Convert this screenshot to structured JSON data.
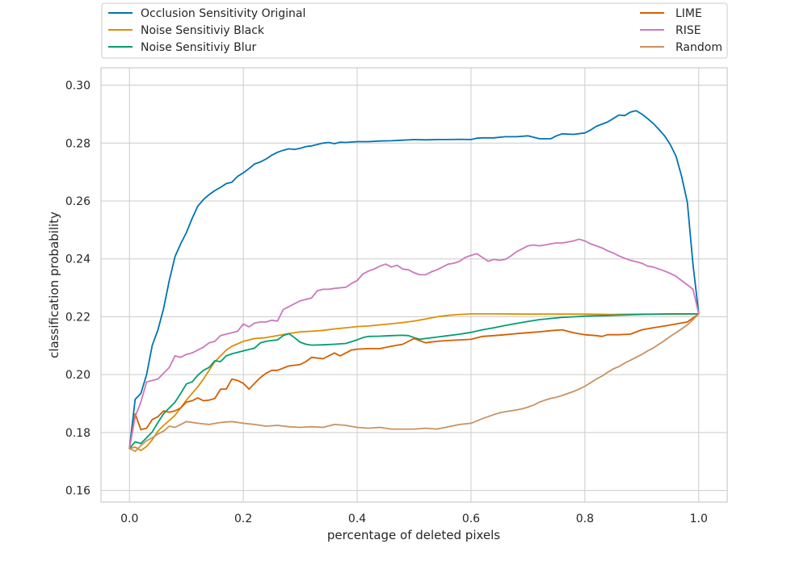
{
  "chart_data": {
    "type": "line",
    "xlabel": "percentage of deleted pixels",
    "ylabel": "classification probability",
    "xlim": [
      -0.05,
      1.05
    ],
    "ylim": [
      0.156,
      0.306
    ],
    "xticks": [
      "0.0",
      "0.2",
      "0.4",
      "0.6",
      "0.8",
      "1.0"
    ],
    "xtick_values": [
      0.0,
      0.2,
      0.4,
      0.6,
      0.8,
      1.0
    ],
    "yticks": [
      "0.16",
      "0.18",
      "0.20",
      "0.22",
      "0.24",
      "0.26",
      "0.28",
      "0.30"
    ],
    "ytick_values": [
      0.16,
      0.18,
      0.2,
      0.22,
      0.24,
      0.26,
      0.28,
      0.3
    ],
    "grid": true,
    "legend_position": "top, above plot",
    "series": [
      {
        "name": "Occlusion Sensitivity Original",
        "color": "#0173b2",
        "x": [
          0.0,
          0.01,
          0.02,
          0.03,
          0.04,
          0.05,
          0.06,
          0.07,
          0.08,
          0.09,
          0.1,
          0.11,
          0.12,
          0.13,
          0.14,
          0.15,
          0.16,
          0.17,
          0.18,
          0.19,
          0.2,
          0.21,
          0.22,
          0.23,
          0.24,
          0.25,
          0.26,
          0.27,
          0.28,
          0.29,
          0.3,
          0.31,
          0.32,
          0.33,
          0.34,
          0.35,
          0.36,
          0.37,
          0.38,
          0.4,
          0.42,
          0.44,
          0.46,
          0.48,
          0.5,
          0.52,
          0.54,
          0.56,
          0.58,
          0.6,
          0.61,
          0.62,
          0.64,
          0.66,
          0.68,
          0.7,
          0.72,
          0.74,
          0.75,
          0.76,
          0.78,
          0.8,
          0.81,
          0.82,
          0.84,
          0.85,
          0.86,
          0.87,
          0.88,
          0.89,
          0.9,
          0.91,
          0.92,
          0.93,
          0.94,
          0.95,
          0.96,
          0.97,
          0.98,
          0.99,
          1.0
        ],
        "y": [
          0.1745,
          0.1915,
          0.1935,
          0.2,
          0.2101,
          0.2155,
          0.2229,
          0.2325,
          0.2408,
          0.2452,
          0.2491,
          0.2539,
          0.2582,
          0.2605,
          0.2622,
          0.2636,
          0.2647,
          0.266,
          0.2665,
          0.2685,
          0.2697,
          0.2712,
          0.2728,
          0.2735,
          0.2745,
          0.2758,
          0.2768,
          0.2775,
          0.278,
          0.2778,
          0.2782,
          0.2788,
          0.279,
          0.2795,
          0.28,
          0.2802,
          0.2798,
          0.2803,
          0.2802,
          0.2805,
          0.2805,
          0.2807,
          0.2808,
          0.281,
          0.2812,
          0.2811,
          0.2812,
          0.2812,
          0.2813,
          0.2812,
          0.2817,
          0.2818,
          0.2818,
          0.2822,
          0.2822,
          0.2825,
          0.2815,
          0.2815,
          0.2825,
          0.2832,
          0.283,
          0.2835,
          0.2845,
          0.2858,
          0.2873,
          0.2885,
          0.2897,
          0.2895,
          0.2907,
          0.2912,
          0.29,
          0.2885,
          0.2868,
          0.2847,
          0.2825,
          0.2795,
          0.2755,
          0.2685,
          0.2595,
          0.238,
          0.221
        ]
      },
      {
        "name": "Noise Sensitiviy Black",
        "color": "#de8f05",
        "x": [
          0.0,
          0.01,
          0.02,
          0.03,
          0.04,
          0.05,
          0.06,
          0.07,
          0.08,
          0.09,
          0.1,
          0.11,
          0.12,
          0.13,
          0.14,
          0.15,
          0.16,
          0.17,
          0.18,
          0.2,
          0.22,
          0.24,
          0.26,
          0.28,
          0.3,
          0.32,
          0.34,
          0.36,
          0.38,
          0.4,
          0.42,
          0.44,
          0.46,
          0.48,
          0.5,
          0.52,
          0.54,
          0.56,
          0.58,
          0.6,
          0.65,
          0.7,
          0.75,
          0.8,
          0.85,
          0.9,
          0.95,
          1.0
        ],
        "y": [
          0.1745,
          0.175,
          0.1738,
          0.1752,
          0.1775,
          0.1805,
          0.1825,
          0.1842,
          0.186,
          0.1885,
          0.1912,
          0.1935,
          0.1958,
          0.1985,
          0.2015,
          0.2045,
          0.2065,
          0.2085,
          0.2098,
          0.2115,
          0.2125,
          0.2128,
          0.2135,
          0.2142,
          0.2148,
          0.215,
          0.2153,
          0.2158,
          0.2162,
          0.2166,
          0.2168,
          0.2172,
          0.2176,
          0.218,
          0.2185,
          0.2192,
          0.22,
          0.2205,
          0.2208,
          0.221,
          0.221,
          0.2209,
          0.2209,
          0.2209,
          0.2208,
          0.2209,
          0.2209,
          0.221
        ]
      },
      {
        "name": "Noise Sensitiviy Blur",
        "color": "#029e73",
        "x": [
          0.0,
          0.01,
          0.02,
          0.03,
          0.04,
          0.05,
          0.06,
          0.07,
          0.08,
          0.09,
          0.1,
          0.11,
          0.12,
          0.13,
          0.14,
          0.15,
          0.16,
          0.17,
          0.18,
          0.2,
          0.22,
          0.23,
          0.24,
          0.25,
          0.26,
          0.27,
          0.28,
          0.29,
          0.3,
          0.31,
          0.32,
          0.34,
          0.36,
          0.38,
          0.4,
          0.41,
          0.42,
          0.44,
          0.46,
          0.48,
          0.49,
          0.5,
          0.51,
          0.52,
          0.54,
          0.56,
          0.58,
          0.6,
          0.62,
          0.64,
          0.66,
          0.68,
          0.7,
          0.72,
          0.74,
          0.76,
          0.78,
          0.8,
          0.85,
          0.9,
          0.95,
          1.0
        ],
        "y": [
          0.1745,
          0.1768,
          0.1762,
          0.1782,
          0.1802,
          0.1835,
          0.1865,
          0.1885,
          0.1905,
          0.1935,
          0.1968,
          0.1975,
          0.1998,
          0.2015,
          0.2025,
          0.2048,
          0.2045,
          0.2065,
          0.2072,
          0.2082,
          0.2092,
          0.211,
          0.2115,
          0.2118,
          0.212,
          0.2135,
          0.2142,
          0.2128,
          0.2112,
          0.2105,
          0.2102,
          0.2103,
          0.2105,
          0.2108,
          0.212,
          0.2128,
          0.2132,
          0.2133,
          0.2135,
          0.2136,
          0.2135,
          0.2128,
          0.2122,
          0.2125,
          0.213,
          0.2135,
          0.214,
          0.2146,
          0.2155,
          0.2162,
          0.217,
          0.2177,
          0.2184,
          0.219,
          0.2194,
          0.2198,
          0.22,
          0.2202,
          0.2205,
          0.2208,
          0.221,
          0.221
        ]
      },
      {
        "name": "LIME",
        "color": "#d55e00",
        "x": [
          0.0,
          0.01,
          0.02,
          0.03,
          0.04,
          0.05,
          0.06,
          0.07,
          0.08,
          0.09,
          0.1,
          0.11,
          0.12,
          0.13,
          0.14,
          0.15,
          0.16,
          0.17,
          0.18,
          0.19,
          0.2,
          0.21,
          0.22,
          0.23,
          0.24,
          0.25,
          0.26,
          0.28,
          0.3,
          0.31,
          0.32,
          0.34,
          0.36,
          0.37,
          0.38,
          0.39,
          0.4,
          0.42,
          0.44,
          0.46,
          0.48,
          0.5,
          0.52,
          0.54,
          0.56,
          0.58,
          0.6,
          0.62,
          0.64,
          0.66,
          0.68,
          0.7,
          0.72,
          0.74,
          0.76,
          0.78,
          0.8,
          0.82,
          0.83,
          0.84,
          0.86,
          0.88,
          0.9,
          0.92,
          0.94,
          0.96,
          0.98,
          1.0
        ],
        "y": [
          0.1745,
          0.1865,
          0.181,
          0.1815,
          0.1845,
          0.1855,
          0.1875,
          0.187,
          0.1875,
          0.1885,
          0.1905,
          0.191,
          0.192,
          0.191,
          0.1912,
          0.1918,
          0.195,
          0.195,
          0.1985,
          0.198,
          0.197,
          0.195,
          0.197,
          0.199,
          0.2005,
          0.2015,
          0.2015,
          0.203,
          0.2035,
          0.2045,
          0.206,
          0.2055,
          0.2075,
          0.2065,
          0.2075,
          0.2085,
          0.2088,
          0.209,
          0.209,
          0.2098,
          0.2105,
          0.2125,
          0.211,
          0.2115,
          0.2118,
          0.212,
          0.2122,
          0.2132,
          0.2135,
          0.2138,
          0.2142,
          0.2145,
          0.2148,
          0.2152,
          0.2155,
          0.2145,
          0.2138,
          0.2135,
          0.2132,
          0.2138,
          0.2138,
          0.214,
          0.2155,
          0.2162,
          0.2168,
          0.2175,
          0.2182,
          0.221
        ]
      },
      {
        "name": "RISE",
        "color": "#cc78bc",
        "x": [
          0.0,
          0.01,
          0.02,
          0.03,
          0.04,
          0.05,
          0.06,
          0.07,
          0.08,
          0.09,
          0.1,
          0.11,
          0.12,
          0.13,
          0.14,
          0.15,
          0.16,
          0.17,
          0.18,
          0.19,
          0.2,
          0.21,
          0.22,
          0.23,
          0.24,
          0.25,
          0.26,
          0.27,
          0.28,
          0.29,
          0.3,
          0.31,
          0.32,
          0.33,
          0.34,
          0.35,
          0.36,
          0.38,
          0.39,
          0.4,
          0.41,
          0.42,
          0.43,
          0.44,
          0.45,
          0.46,
          0.47,
          0.48,
          0.49,
          0.5,
          0.51,
          0.52,
          0.53,
          0.54,
          0.55,
          0.56,
          0.57,
          0.58,
          0.59,
          0.6,
          0.61,
          0.62,
          0.63,
          0.64,
          0.65,
          0.66,
          0.67,
          0.68,
          0.69,
          0.7,
          0.71,
          0.72,
          0.73,
          0.74,
          0.75,
          0.76,
          0.77,
          0.78,
          0.79,
          0.8,
          0.81,
          0.82,
          0.83,
          0.84,
          0.85,
          0.86,
          0.87,
          0.88,
          0.89,
          0.9,
          0.91,
          0.92,
          0.93,
          0.94,
          0.95,
          0.96,
          0.97,
          0.98,
          0.99,
          1.0
        ],
        "y": [
          0.1745,
          0.1855,
          0.1905,
          0.1975,
          0.198,
          0.1985,
          0.2005,
          0.2025,
          0.2065,
          0.206,
          0.207,
          0.2075,
          0.2085,
          0.2095,
          0.211,
          0.2115,
          0.2135,
          0.214,
          0.2145,
          0.215,
          0.2175,
          0.2165,
          0.2178,
          0.2182,
          0.2182,
          0.2188,
          0.2185,
          0.2225,
          0.2235,
          0.2245,
          0.2255,
          0.226,
          0.2265,
          0.229,
          0.2295,
          0.2295,
          0.2298,
          0.2302,
          0.2315,
          0.2325,
          0.2348,
          0.2358,
          0.2365,
          0.2375,
          0.2382,
          0.2372,
          0.2378,
          0.2365,
          0.2362,
          0.2352,
          0.2345,
          0.2345,
          0.2355,
          0.2362,
          0.2372,
          0.2382,
          0.2385,
          0.2392,
          0.2405,
          0.2412,
          0.2418,
          0.2405,
          0.2392,
          0.2398,
          0.2395,
          0.2398,
          0.241,
          0.2425,
          0.2435,
          0.2445,
          0.2448,
          0.2445,
          0.2448,
          0.2452,
          0.2455,
          0.2455,
          0.2458,
          0.2462,
          0.2468,
          0.2462,
          0.2452,
          0.2445,
          0.2438,
          0.2428,
          0.242,
          0.241,
          0.2402,
          0.2395,
          0.239,
          0.2385,
          0.2375,
          0.2372,
          0.2365,
          0.2358,
          0.235,
          0.234,
          0.2325,
          0.231,
          0.2295,
          0.221
        ]
      },
      {
        "name": "Random",
        "color": "#ca9161",
        "x": [
          0.0,
          0.01,
          0.02,
          0.03,
          0.04,
          0.05,
          0.06,
          0.07,
          0.08,
          0.09,
          0.1,
          0.12,
          0.14,
          0.16,
          0.18,
          0.2,
          0.22,
          0.24,
          0.26,
          0.28,
          0.3,
          0.32,
          0.34,
          0.36,
          0.38,
          0.4,
          0.42,
          0.44,
          0.46,
          0.48,
          0.5,
          0.52,
          0.54,
          0.56,
          0.58,
          0.6,
          0.61,
          0.62,
          0.63,
          0.64,
          0.65,
          0.66,
          0.67,
          0.68,
          0.69,
          0.7,
          0.71,
          0.72,
          0.73,
          0.74,
          0.75,
          0.76,
          0.77,
          0.78,
          0.79,
          0.8,
          0.81,
          0.82,
          0.83,
          0.84,
          0.85,
          0.86,
          0.87,
          0.88,
          0.89,
          0.9,
          0.91,
          0.92,
          0.93,
          0.94,
          0.95,
          0.96,
          0.97,
          0.98,
          0.99,
          1.0
        ],
        "y": [
          0.1745,
          0.1735,
          0.1755,
          0.1772,
          0.1782,
          0.1795,
          0.1805,
          0.1822,
          0.1818,
          0.1828,
          0.1838,
          0.1832,
          0.1828,
          0.1835,
          0.1838,
          0.1832,
          0.1828,
          0.1822,
          0.1825,
          0.182,
          0.1818,
          0.182,
          0.1818,
          0.1828,
          0.1825,
          0.1818,
          0.1815,
          0.1818,
          0.1812,
          0.1812,
          0.1812,
          0.1815,
          0.1812,
          0.182,
          0.1828,
          0.1832,
          0.184,
          0.1848,
          0.1855,
          0.1862,
          0.1868,
          0.1872,
          0.1875,
          0.1878,
          0.1882,
          0.1888,
          0.1895,
          0.1905,
          0.1912,
          0.1918,
          0.1922,
          0.1928,
          0.1935,
          0.1942,
          0.195,
          0.196,
          0.1972,
          0.1985,
          0.1995,
          0.2008,
          0.202,
          0.2028,
          0.204,
          0.205,
          0.206,
          0.207,
          0.2082,
          0.2092,
          0.2105,
          0.2118,
          0.2132,
          0.2145,
          0.2158,
          0.2172,
          0.219,
          0.221
        ]
      }
    ]
  }
}
